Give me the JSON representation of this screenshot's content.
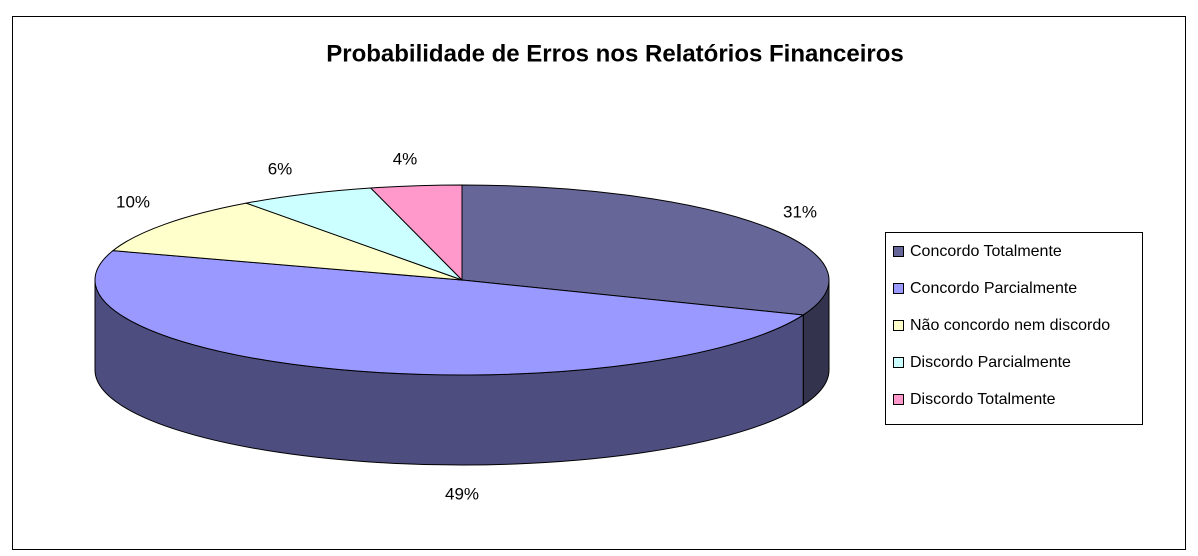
{
  "chart_data": {
    "type": "pie3d",
    "title": "Probabilidade de Erros nos Relatórios Financeiros",
    "categories": [
      "Concordo Totalmente",
      "Concordo Parcialmente",
      "Não concordo nem discordo",
      "Discordo Parcialmente",
      "Discordo Totalmente"
    ],
    "values": [
      31,
      49,
      10,
      6,
      4
    ],
    "value_labels": [
      "31%",
      "49%",
      "10%",
      "6%",
      "4%"
    ],
    "colors": [
      "#666699",
      "#9999ff",
      "#ffffcc",
      "#ccffff",
      "#ff99cc"
    ],
    "legend": "right"
  }
}
